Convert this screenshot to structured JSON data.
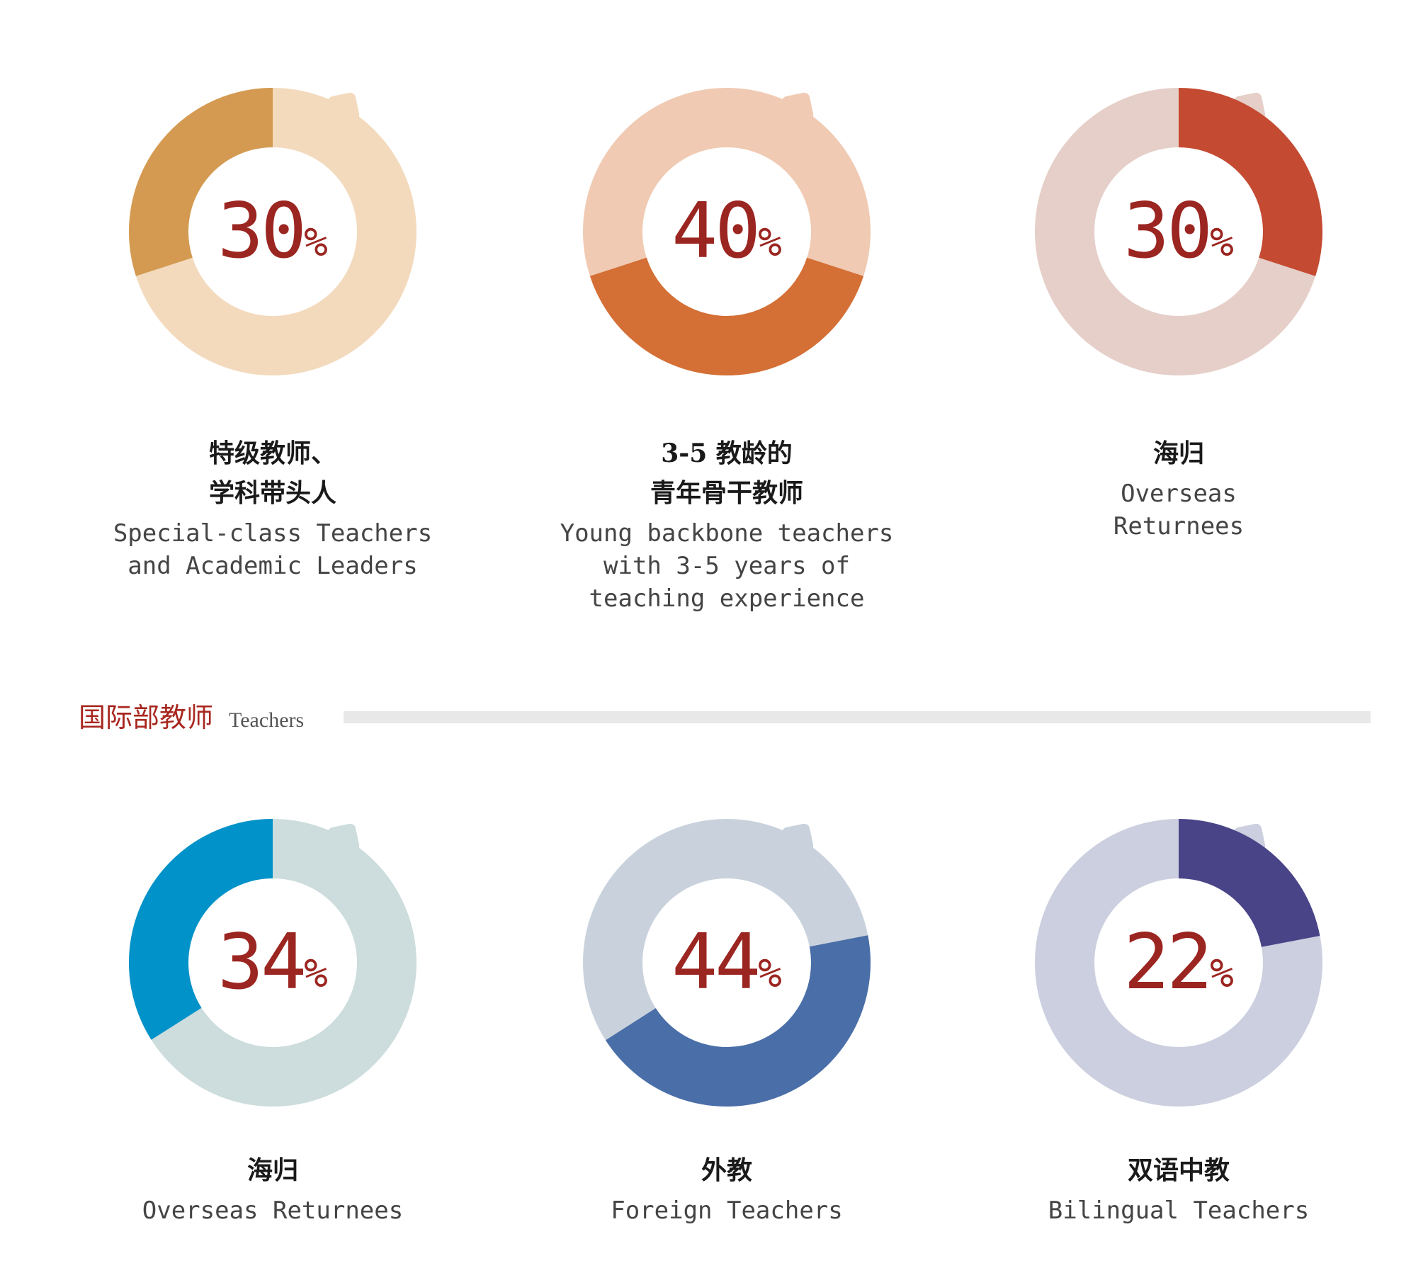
{
  "section_international": {
    "title_zh": "国际部教师",
    "title_en": "Teachers"
  },
  "row1": [
    {
      "percent": "30",
      "symbol": "%",
      "value": 30,
      "start_deg": -108,
      "end_deg": 0,
      "accent": "#d49a52",
      "track": "#f3dabd",
      "label_zh": [
        "特级教师、",
        "学科带头人"
      ],
      "label_en": "Special-class Teachers\nand Academic Leaders"
    },
    {
      "percent": "40",
      "symbol": "%",
      "value": 40,
      "start_deg": 108,
      "end_deg": 252,
      "accent": "#d46f35",
      "track": "#f0cab3",
      "label_zh": [
        "3-5 教龄的",
        "青年骨干教师"
      ],
      "label_en": "Young backbone teachers\nwith 3-5 years of\nteaching experience"
    },
    {
      "percent": "30",
      "symbol": "%",
      "value": 30,
      "start_deg": 0,
      "end_deg": 108,
      "accent": "#c44a31",
      "track": "#e5cfc8",
      "label_zh": [
        "海归"
      ],
      "label_en": "Overseas\nReturnees"
    }
  ],
  "row2": [
    {
      "percent": "34",
      "symbol": "%",
      "value": 34,
      "start_deg": -122.4,
      "end_deg": 0,
      "accent": "#0092c9",
      "track": "#cddcdc",
      "label_zh": [
        "海归"
      ],
      "label_en": "Overseas Returnees"
    },
    {
      "percent": "44",
      "symbol": "%",
      "value": 44,
      "start_deg": 79,
      "end_deg": 237.4,
      "accent": "#4a6ea8",
      "track": "#c9d2dc",
      "label_zh": [
        "外教"
      ],
      "label_en": "Foreign Teachers"
    },
    {
      "percent": "22",
      "symbol": "%",
      "value": 22,
      "start_deg": 0,
      "end_deg": 79.2,
      "accent": "#484487",
      "track": "#cbcfdf",
      "label_zh": [
        "双语中教"
      ],
      "label_en": "Bilingual Teachers"
    }
  ]
}
